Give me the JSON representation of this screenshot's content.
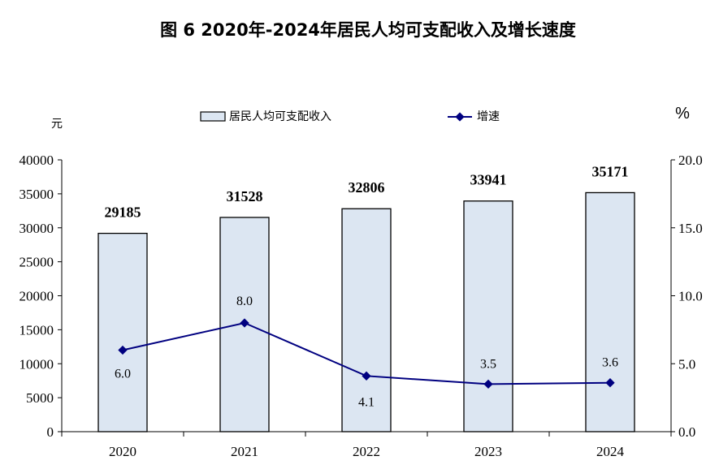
{
  "chart_data": {
    "type": "bar",
    "title": "图 6  2020年-2024年居民人均可支配收入及增长速度",
    "categories": [
      "2020",
      "2021",
      "2022",
      "2023",
      "2024"
    ],
    "left_axis": {
      "unit": "元",
      "range": [
        0,
        40000
      ],
      "ticks": [
        "0",
        "5000",
        "10000",
        "15000",
        "20000",
        "25000",
        "30000",
        "35000",
        "40000"
      ]
    },
    "right_axis": {
      "unit": "%",
      "range": [
        0,
        20
      ],
      "ticks": [
        "0.0",
        "5.0",
        "10.0",
        "15.0",
        "20.0"
      ]
    },
    "series": [
      {
        "name": "居民人均可支配收入",
        "kind": "bar",
        "axis": "left",
        "values": [
          29185,
          31528,
          32806,
          33941,
          35171
        ],
        "labels": [
          "29185",
          "31528",
          "32806",
          "33941",
          "35171"
        ]
      },
      {
        "name": "增速",
        "kind": "line",
        "axis": "right",
        "values": [
          6.0,
          8.0,
          4.1,
          3.5,
          3.6
        ],
        "labels": [
          "6.0",
          "8.0",
          "4.1",
          "3.5",
          "3.6"
        ]
      }
    ],
    "legend_position": "top-center",
    "grid": false,
    "colors": {
      "bar_fill": "#dce6f2",
      "bar_stroke": "#000000",
      "line": "#000080"
    }
  }
}
